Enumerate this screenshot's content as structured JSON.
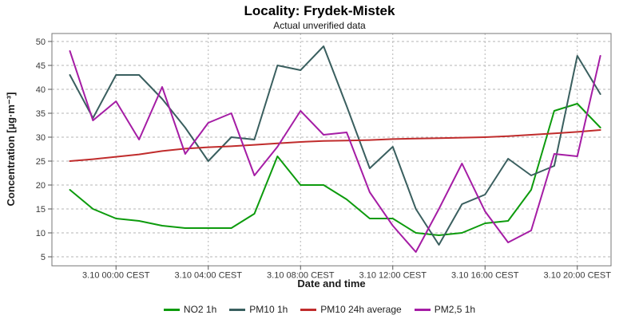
{
  "header": {
    "title": "Locality: Frydek-Mistek",
    "subtitle": "Actual unverified data"
  },
  "chart_data": {
    "type": "line",
    "title": "Locality: Frydek-Mistek",
    "subtitle": "Actual unverified data",
    "xlabel": "Date and time",
    "ylabel": "Concentration [µg·m⁻³]",
    "ylim": [
      3,
      52
    ],
    "yticks": [
      5,
      10,
      15,
      20,
      25,
      30,
      35,
      40,
      45,
      50
    ],
    "grid": "dashed",
    "legend_position": "bottom",
    "n_points": 24,
    "x_description": "hourly values, one point per hour; ticks every 4 hours",
    "x_ticks": [
      {
        "index": 2,
        "label": "3.10 00:00 CEST"
      },
      {
        "index": 6,
        "label": "3.10 04:00 CEST"
      },
      {
        "index": 10,
        "label": "3.10 08:00 CEST"
      },
      {
        "index": 14,
        "label": "3.10 12:00 CEST"
      },
      {
        "index": 18,
        "label": "3.10 16:00 CEST"
      },
      {
        "index": 22,
        "label": "3.10 20:00 CEST"
      }
    ],
    "series": [
      {
        "name": "NO2 1h",
        "color": "#0d9b0d",
        "values": [
          19,
          15,
          13,
          12.5,
          11.5,
          11,
          11,
          11,
          14,
          26,
          20,
          20,
          17,
          13,
          13,
          10,
          9.5,
          10,
          12,
          12.5,
          19,
          35.5,
          37,
          32
        ]
      },
      {
        "name": "PM10 1h",
        "color": "#3a5f5f",
        "values": [
          43,
          34,
          43,
          43,
          38,
          32,
          25,
          30,
          29.5,
          45,
          44,
          49,
          36.5,
          23.5,
          28,
          15,
          7.5,
          16,
          18,
          25.5,
          22,
          24,
          47,
          39
        ]
      },
      {
        "name": "PM10 24h average",
        "color": "#c02c2c",
        "values": [
          25,
          25.4,
          25.9,
          26.4,
          27.1,
          27.6,
          27.9,
          28.1,
          28.4,
          28.7,
          29,
          29.2,
          29.3,
          29.4,
          29.6,
          29.7,
          29.8,
          29.9,
          30,
          30.2,
          30.5,
          30.8,
          31.1,
          31.5
        ]
      },
      {
        "name": "PM2,5 1h",
        "color": "#a51da5",
        "values": [
          48,
          33.5,
          37.5,
          29.5,
          40.5,
          26.5,
          33,
          35,
          22,
          28,
          35.5,
          30.5,
          31,
          18.5,
          11.5,
          6,
          15,
          24.5,
          14.5,
          8,
          10.5,
          26.5,
          26,
          47
        ]
      }
    ],
    "style": {
      "frame_color": "#777777",
      "tick_color": "#555555",
      "gridline_color": "#b5b5b5",
      "background": "#ffffff"
    }
  }
}
